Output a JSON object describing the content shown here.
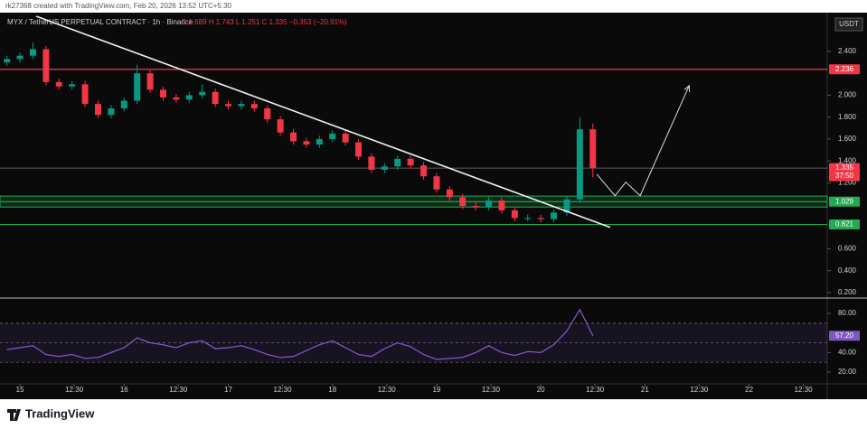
{
  "header": {
    "credit": "rk27368 created with TradingView.com, Feb 20, 2026 13:52 UTC+5:30"
  },
  "legend": {
    "symbol": "MYX / TetherUS PERPETUAL CONTRACT · 1h · Binance",
    "ohlc": "O 1.689  H 1.743  L 1.251  C 1.335  −0.353 (−20.91%)"
  },
  "currency": "USDT",
  "footer": {
    "brand": "TradingView"
  },
  "chart_data": {
    "type": "candlestick",
    "x": [
      -3,
      0,
      3,
      6,
      9,
      12,
      15,
      18,
      21,
      24,
      27,
      30,
      33,
      36,
      39,
      42,
      45,
      48,
      51,
      54,
      57,
      60,
      63,
      66,
      69,
      72,
      75,
      78,
      81,
      84,
      87,
      90,
      93,
      96,
      99,
      102,
      105,
      108,
      111,
      114,
      117,
      120,
      123,
      126,
      129,
      132
    ],
    "open": [
      2.3,
      2.33,
      2.36,
      2.42,
      2.12,
      2.08,
      2.1,
      1.92,
      1.82,
      1.88,
      1.95,
      2.2,
      2.05,
      1.98,
      1.96,
      2.0,
      2.03,
      1.92,
      1.9,
      1.92,
      1.88,
      1.78,
      1.66,
      1.58,
      1.55,
      1.6,
      1.65,
      1.57,
      1.44,
      1.32,
      1.35,
      1.42,
      1.36,
      1.26,
      1.14,
      1.07,
      0.99,
      0.98,
      1.04,
      0.95,
      0.88,
      0.88,
      0.87,
      0.93,
      1.05,
      1.689
    ],
    "high": [
      2.36,
      2.39,
      2.48,
      2.45,
      2.15,
      2.13,
      2.13,
      1.95,
      1.91,
      1.98,
      2.28,
      2.23,
      2.08,
      2.01,
      2.03,
      2.1,
      2.06,
      1.95,
      1.95,
      1.95,
      1.91,
      1.81,
      1.69,
      1.61,
      1.63,
      1.68,
      1.68,
      1.6,
      1.47,
      1.38,
      1.45,
      1.45,
      1.39,
      1.29,
      1.17,
      1.1,
      1.02,
      1.07,
      1.07,
      0.98,
      0.91,
      0.91,
      0.96,
      1.08,
      1.8,
      1.743
    ],
    "low": [
      2.27,
      2.3,
      2.33,
      2.09,
      2.05,
      2.05,
      1.89,
      1.79,
      1.79,
      1.85,
      1.92,
      2.02,
      1.95,
      1.93,
      1.93,
      1.97,
      1.89,
      1.87,
      1.87,
      1.85,
      1.75,
      1.63,
      1.55,
      1.52,
      1.52,
      1.57,
      1.54,
      1.41,
      1.29,
      1.29,
      1.32,
      1.33,
      1.23,
      1.11,
      1.04,
      0.96,
      0.95,
      0.95,
      0.92,
      0.85,
      0.85,
      0.84,
      0.84,
      0.9,
      1.02,
      1.251
    ],
    "close": [
      2.33,
      2.36,
      2.42,
      2.12,
      2.08,
      2.1,
      1.92,
      1.82,
      1.88,
      1.95,
      2.2,
      2.05,
      1.98,
      1.96,
      2.0,
      2.03,
      1.92,
      1.9,
      1.92,
      1.88,
      1.78,
      1.66,
      1.58,
      1.55,
      1.6,
      1.65,
      1.57,
      1.44,
      1.32,
      1.35,
      1.42,
      1.36,
      1.26,
      1.14,
      1.07,
      0.99,
      0.98,
      1.04,
      0.95,
      0.88,
      0.88,
      0.87,
      0.93,
      1.05,
      1.689,
      1.335
    ],
    "up_color": "#089981",
    "down_color": "#f23645",
    "xlim": [
      -4.6,
      186
    ],
    "xticks": [
      {
        "value": 0,
        "label": "15"
      },
      {
        "value": 12.5,
        "label": "12:30"
      },
      {
        "value": 24,
        "label": "16"
      },
      {
        "value": 36.5,
        "label": "12:30"
      },
      {
        "value": 48,
        "label": "17"
      },
      {
        "value": 60.5,
        "label": "12:30"
      },
      {
        "value": 72,
        "label": "18"
      },
      {
        "value": 84.5,
        "label": "12:30"
      },
      {
        "value": 96,
        "label": "19"
      },
      {
        "value": 108.5,
        "label": "12:30"
      },
      {
        "value": 120,
        "label": "20"
      },
      {
        "value": 132.5,
        "label": "12:30"
      },
      {
        "value": 144,
        "label": "21"
      },
      {
        "value": 156.5,
        "label": "12:30"
      },
      {
        "value": 168,
        "label": "22"
      },
      {
        "value": 180.5,
        "label": "12:30"
      }
    ],
    "ylim": [
      0.15,
      2.72
    ],
    "yticks": [
      {
        "value": 2.4,
        "label": "2.400"
      },
      {
        "value": 2.0,
        "label": "2.000"
      },
      {
        "value": 1.8,
        "label": "1.800"
      },
      {
        "value": 1.6,
        "label": "1.600"
      },
      {
        "value": 1.4,
        "label": "1.400"
      },
      {
        "value": 1.2,
        "label": "1.200"
      },
      {
        "value": 0.6,
        "label": "0.600"
      },
      {
        "value": 0.4,
        "label": "0.400"
      },
      {
        "value": 0.2,
        "label": "0.200"
      }
    ],
    "levels": [
      {
        "value": 2.236,
        "label": "2.236",
        "color": "#f23645"
      },
      {
        "value": 1.335,
        "label": "1.335",
        "color": "#f23645",
        "sublabel": "37:50"
      },
      {
        "value": 1.029,
        "label": "1.029",
        "color": "#22ab52"
      },
      {
        "value": 0.821,
        "label": "0.821",
        "color": "#22ab52"
      }
    ],
    "zone": {
      "from": 0.98,
      "to": 1.08,
      "color": "#22ab52"
    },
    "trendline": {
      "x": [
        3.75,
        136
      ],
      "y": [
        2.72,
        0.795
      ]
    },
    "projection": {
      "x": [
        132.9,
        137.1,
        139.6,
        142.9,
        154.2
      ],
      "y": [
        1.28,
        1.083,
        1.207,
        1.083,
        2.087
      ]
    },
    "rsi": {
      "x": [
        -3,
        0,
        3,
        6,
        9,
        12,
        15,
        18,
        21,
        24,
        27,
        30,
        33,
        36,
        39,
        42,
        45,
        48,
        51,
        54,
        57,
        60,
        63,
        66,
        69,
        72,
        75,
        78,
        81,
        84,
        87,
        90,
        93,
        96,
        99,
        102,
        105,
        108,
        111,
        114,
        117,
        120,
        123,
        126,
        129,
        132
      ],
      "values": [
        43,
        45,
        47,
        38,
        36,
        38,
        34,
        35,
        40,
        45,
        55,
        50,
        48,
        45,
        50,
        52,
        44,
        45,
        47,
        43,
        38,
        35,
        36,
        42,
        48,
        52,
        45,
        38,
        36,
        44,
        50,
        46,
        38,
        33,
        34,
        35,
        40,
        47,
        40,
        37,
        41,
        40,
        48,
        62,
        84,
        57.2
      ],
      "value_label": "57.20",
      "color": "#7e57c2",
      "ylim": [
        8,
        93
      ],
      "yticks": [
        {
          "value": 80,
          "label": "80.00"
        },
        {
          "value": 40,
          "label": "40.00"
        },
        {
          "value": 20,
          "label": "20.00"
        }
      ],
      "bands": [
        70,
        50,
        30
      ]
    }
  }
}
